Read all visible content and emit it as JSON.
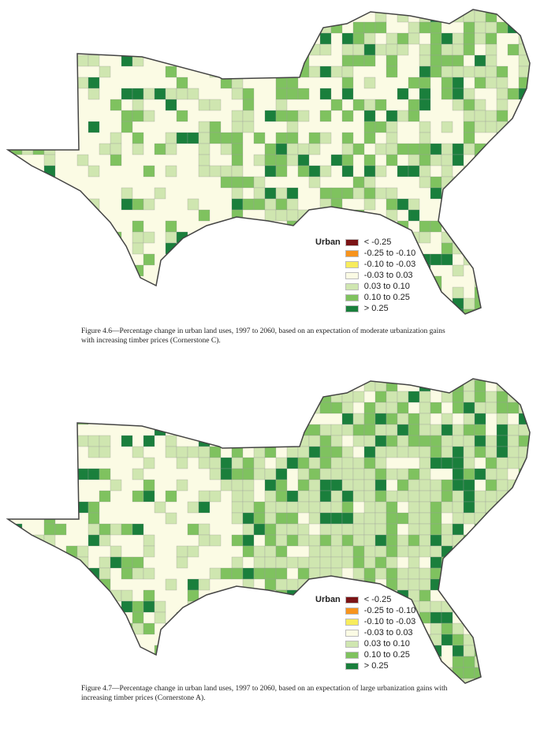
{
  "legend": {
    "title": "Urban",
    "classes": [
      {
        "label": "< -0.25",
        "color": "#7b1416"
      },
      {
        "label": "-0.25 to -0.10",
        "color": "#f7941d"
      },
      {
        "label": "-0.10 to -0.03",
        "color": "#f7ec5c"
      },
      {
        "label": "-0.03 to 0.03",
        "color": "#fbfbe4"
      },
      {
        "label": "0.03 to 0.10",
        "color": "#cfe6b0"
      },
      {
        "label": "0.10 to 0.25",
        "color": "#7fc25f"
      },
      {
        "label": "> 0.25",
        "color": "#1a7f3c"
      }
    ]
  },
  "figures": [
    {
      "caption": "Figure 4.6—Percentage change in urban land uses, 1997 to 2060, based on an expectation of moderate urbanization gains with increasing timber prices (Cornerstone C)."
    },
    {
      "caption": "Figure 4.7—Percentage change in urban land uses, 1997 to 2060, based on an expectation of large urbanization gains with increasing timber prices (Cornerstone A)."
    }
  ]
}
